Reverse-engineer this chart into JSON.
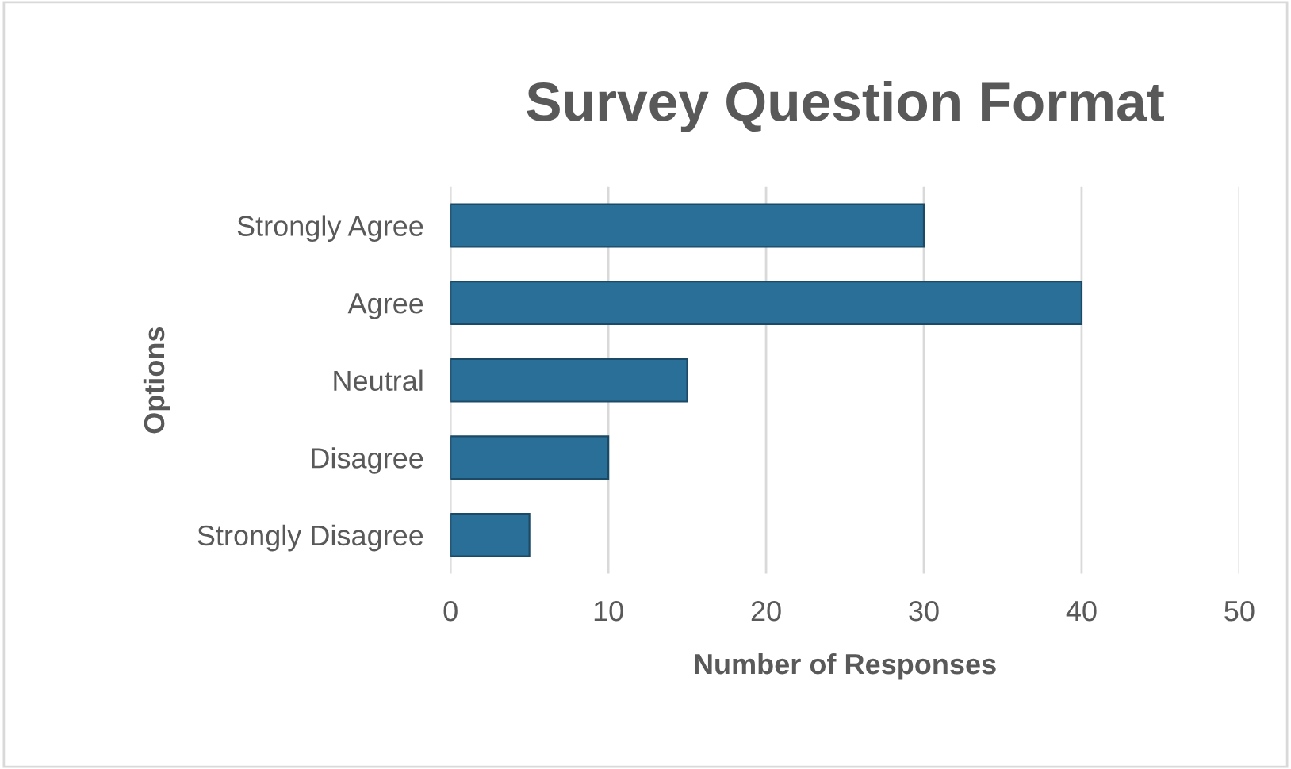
{
  "chart_data": {
    "type": "bar",
    "orientation": "horizontal",
    "title": "Survey Question Format",
    "xlabel": "Number of Responses",
    "ylabel": "Options",
    "categories": [
      "Strongly Agree",
      "Agree",
      "Neutral",
      "Disagree",
      "Strongly Disagree"
    ],
    "values": [
      30,
      40,
      15,
      10,
      5
    ],
    "color": "#2a6f97",
    "xlim": [
      0,
      50
    ],
    "xticks": [
      0,
      10,
      20,
      30,
      40,
      50
    ],
    "grid": "x"
  }
}
